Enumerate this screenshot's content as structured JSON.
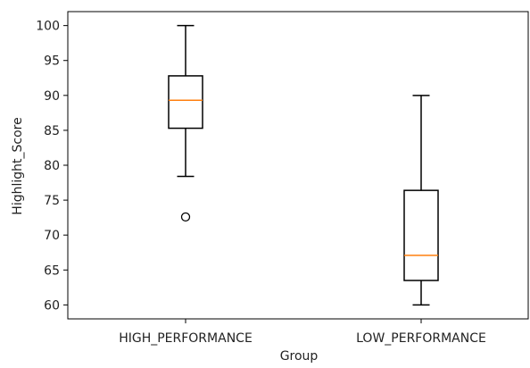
{
  "chart_data": {
    "type": "box",
    "title": "",
    "xlabel": "Group",
    "ylabel": "Highlight_Score",
    "ylim": [
      58,
      102
    ],
    "yticks": [
      60,
      65,
      70,
      75,
      80,
      85,
      90,
      95,
      100
    ],
    "categories": [
      "HIGH_PERFORMANCE",
      "LOW_PERFORMANCE"
    ],
    "boxes": [
      {
        "category": "HIGH_PERFORMANCE",
        "whisker_low": 78.4,
        "q1": 85.3,
        "median": 89.3,
        "q3": 92.8,
        "whisker_high": 100,
        "outliers": [
          72.6
        ]
      },
      {
        "category": "LOW_PERFORMANCE",
        "whisker_low": 60,
        "q1": 63.5,
        "median": 67.1,
        "q3": 76.4,
        "whisker_high": 90,
        "outliers": []
      }
    ],
    "grid": false,
    "colors": {
      "box": "#000000",
      "median": "#ff7f0e",
      "axis": "#000000",
      "background": "#ffffff"
    }
  }
}
